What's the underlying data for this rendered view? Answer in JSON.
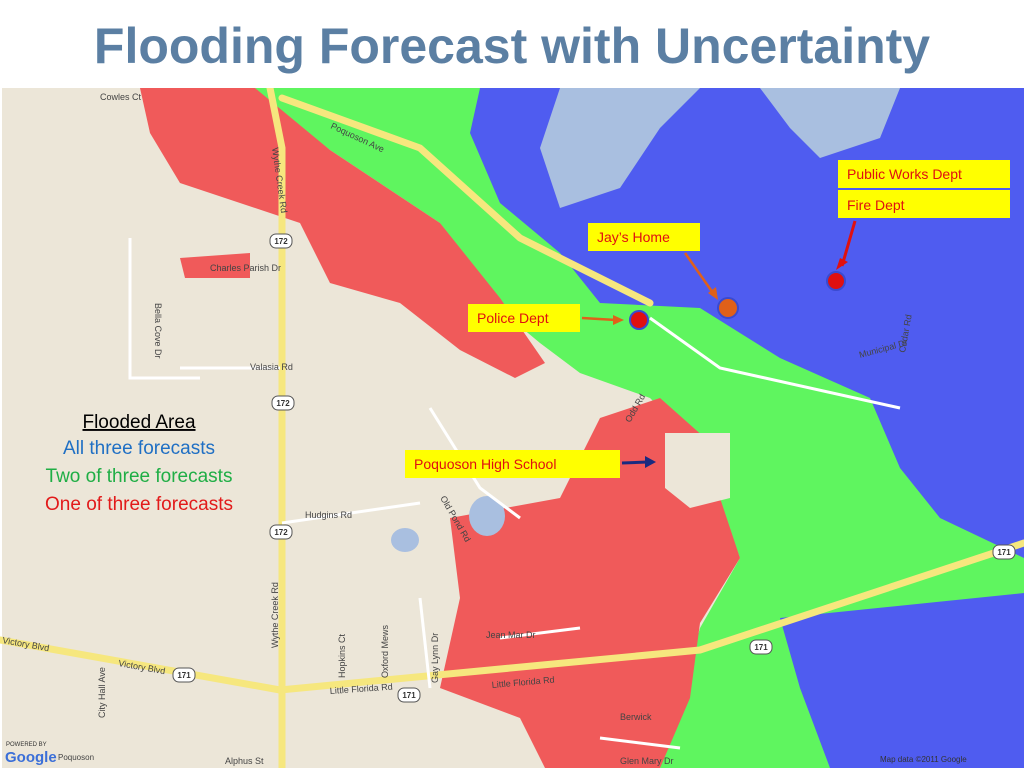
{
  "title": "Flooding Forecast with Uncertainty",
  "legend": {
    "heading": "Flooded Area",
    "items": [
      "All three forecasts",
      "Two of three forecasts",
      "One of three forecasts"
    ]
  },
  "callouts": [
    "Public Works Dept",
    "Fire Dept",
    "Jay’s Home",
    "Police Dept",
    "Poquoson  High School"
  ],
  "roads": [
    "Wythe Creek Rd",
    "Wythe Creek Rd",
    "Poquoson Ave",
    "Victory Blvd",
    "Victory Blvd",
    "Little Florida Rd",
    "Little Florida Rd",
    "Hudgins Rd",
    "Valasia Rd",
    "Jean Mar Dr",
    "Municipal Dr",
    "Cedar Rd",
    "Hopkins Ct",
    "Gay Lynn Dr",
    "Oxford Mews",
    "Charles Parish Dr",
    "Bella Cove Dr",
    "City Hall Ave",
    "Alphus St",
    "Glen Mary Dr",
    "Berwick",
    "Old Pond Rd",
    "Cowles Ct",
    "Odd Rd"
  ],
  "shields": [
    "172",
    "172",
    "172",
    "171",
    "171",
    "171",
    "171"
  ],
  "attribution": {
    "powered": "POWERED BY",
    "brand": "Google",
    "place": "Poquoson",
    "copyright": "Map data ©2011 Google"
  }
}
